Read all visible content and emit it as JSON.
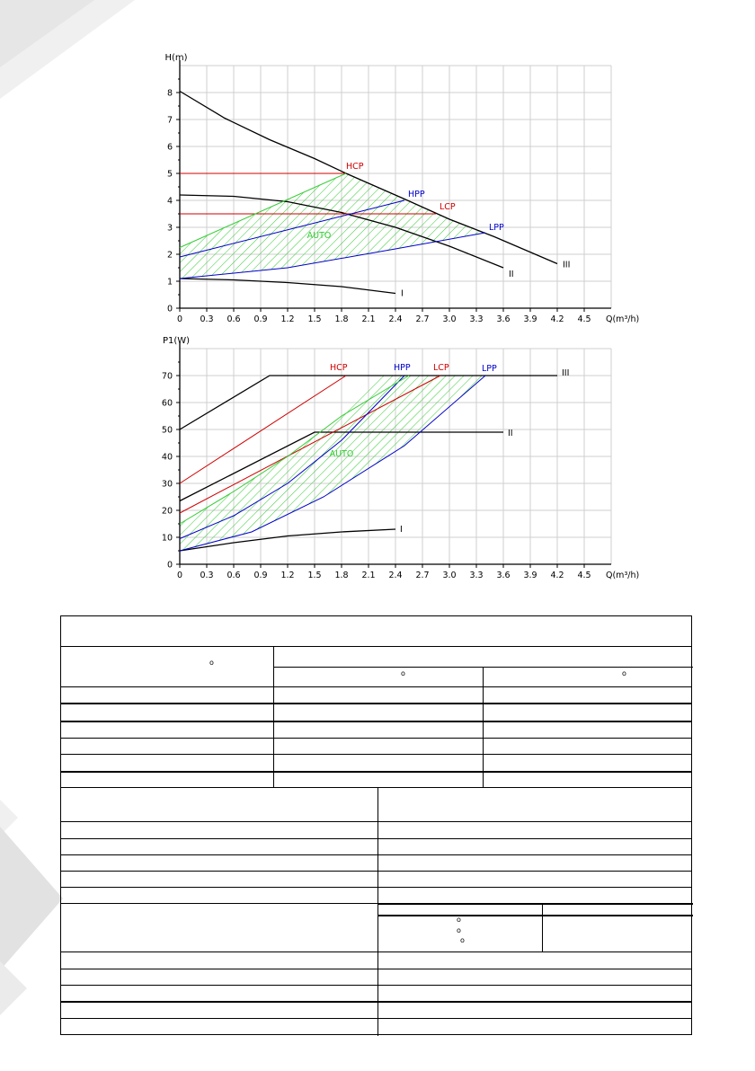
{
  "chart_data": [
    {
      "type": "line",
      "ylabel": "H(m)",
      "xlabel": "Q(m³/h)",
      "xlim": [
        0,
        4.8
      ],
      "ylim": [
        0,
        9
      ],
      "grid": true,
      "x_ticks": [
        "0",
        "0.3",
        "0.6",
        "0.9",
        "1.2",
        "1.5",
        "1.8",
        "2.1",
        "2.4",
        "2.7",
        "3.0",
        "3.3",
        "3.6",
        "3.9",
        "4.2",
        "4.5"
      ],
      "y_ticks": [
        "0",
        "1",
        "2",
        "3",
        "4",
        "5",
        "6",
        "7",
        "8"
      ],
      "series": [
        {
          "name": "III",
          "color": "#000000",
          "x": [
            0,
            0.5,
            1.0,
            1.5,
            1.85,
            2.5,
            3.0,
            3.5,
            4.2
          ],
          "y": [
            8.05,
            7.05,
            6.25,
            5.55,
            5.0,
            4.05,
            3.3,
            2.65,
            1.65
          ]
        },
        {
          "name": "II",
          "color": "#000000",
          "x": [
            0,
            0.6,
            1.2,
            1.8,
            2.4,
            3.0,
            3.6
          ],
          "y": [
            4.2,
            4.15,
            3.95,
            3.55,
            3.0,
            2.3,
            1.5
          ]
        },
        {
          "name": "I",
          "color": "#000000",
          "x": [
            0,
            0.6,
            1.2,
            1.8,
            2.4
          ],
          "y": [
            1.1,
            1.05,
            0.95,
            0.8,
            0.55
          ]
        },
        {
          "name": "HCP",
          "color": "#d00000",
          "x": [
            0,
            1.85
          ],
          "y": [
            5.0,
            5.0
          ]
        },
        {
          "name": "LCP",
          "color": "#d00000",
          "x": [
            0,
            2.85
          ],
          "y": [
            3.5,
            3.5
          ]
        },
        {
          "name": "HPP",
          "color": "#0000cc",
          "x": [
            0,
            2.5
          ],
          "y": [
            1.9,
            4.0
          ]
        },
        {
          "name": "LPP",
          "color": "#0000cc",
          "x": [
            0,
            1.2,
            2.4,
            3.4
          ],
          "y": [
            1.1,
            1.5,
            2.2,
            2.8
          ]
        },
        {
          "name": "AUTO",
          "color": "#33cc33",
          "x": [
            0,
            1.85
          ],
          "y": [
            2.25,
            5.0
          ]
        }
      ],
      "line_labels": [
        "HCP",
        "HPP",
        "LCP",
        "LPP",
        "AUTO",
        "III",
        "II",
        "I"
      ]
    },
    {
      "type": "line",
      "ylabel": "P1(W)",
      "xlabel": "Q(m³/h)",
      "xlim": [
        0,
        4.8
      ],
      "ylim": [
        0,
        80
      ],
      "grid": true,
      "x_ticks": [
        "0",
        "0.3",
        "0.6",
        "0.9",
        "1.2",
        "1.5",
        "1.8",
        "2.1",
        "2.4",
        "2.7",
        "3.0",
        "3.3",
        "3.6",
        "3.9",
        "4.2",
        "4.5"
      ],
      "y_ticks": [
        "0",
        "10",
        "20",
        "30",
        "40",
        "50",
        "60",
        "70"
      ],
      "series": [
        {
          "name": "III",
          "color": "#000000",
          "x": [
            0,
            1.0,
            4.2
          ],
          "y": [
            50,
            70,
            70
          ]
        },
        {
          "name": "II",
          "color": "#000000",
          "x": [
            0,
            1.5,
            3.6
          ],
          "y": [
            23.5,
            49,
            49
          ]
        },
        {
          "name": "I",
          "color": "#000000",
          "x": [
            0,
            0.6,
            1.2,
            1.8,
            2.4
          ],
          "y": [
            5,
            8,
            10.5,
            12,
            13
          ]
        },
        {
          "name": "HCP",
          "color": "#d00000",
          "x": [
            0,
            1.85
          ],
          "y": [
            30,
            70
          ]
        },
        {
          "name": "LCP",
          "color": "#d00000",
          "x": [
            0,
            2.9
          ],
          "y": [
            19,
            70
          ]
        },
        {
          "name": "HPP",
          "color": "#0000cc",
          "x": [
            0,
            0.6,
            1.2,
            1.8,
            2.5
          ],
          "y": [
            9.5,
            18,
            30,
            46,
            70
          ]
        },
        {
          "name": "LPP",
          "color": "#0000cc",
          "x": [
            0,
            0.8,
            1.6,
            2.5,
            3.4
          ],
          "y": [
            5,
            12,
            25,
            44,
            70
          ]
        },
        {
          "name": "AUTO",
          "color": "#33cc33",
          "x": [
            0,
            0.6,
            1.2,
            1.8,
            2.55
          ],
          "y": [
            15,
            27,
            40,
            55,
            70
          ]
        }
      ],
      "line_labels": [
        "HCP",
        "HPP",
        "LCP",
        "LPP",
        "AUTO",
        "III",
        "II",
        "I"
      ]
    }
  ],
  "table": {
    "degree_mark": "o"
  }
}
